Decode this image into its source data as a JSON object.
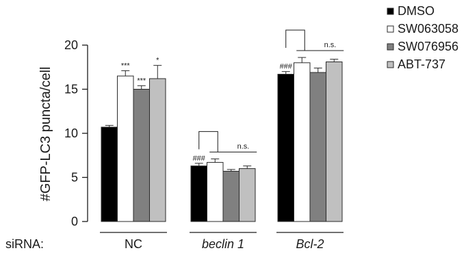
{
  "chart_data": {
    "type": "bar",
    "ylabel": "#GFP-LC3 puncta/cell",
    "ylim": [
      0,
      20
    ],
    "yticks": [
      0,
      5,
      10,
      15,
      20
    ],
    "row_label": "siRNA:",
    "categories": [
      "NC",
      "beclin 1",
      "Bcl-2"
    ],
    "categories_italic": [
      false,
      true,
      true
    ],
    "series": [
      {
        "name": "DMSO",
        "color": "#000000",
        "values": [
          10.7,
          6.3,
          16.7
        ],
        "errors": [
          0.2,
          0.3,
          0.3
        ]
      },
      {
        "name": "SW063058",
        "color": "#ffffff",
        "values": [
          16.5,
          6.7,
          18.0
        ],
        "errors": [
          0.6,
          0.4,
          0.6
        ]
      },
      {
        "name": "SW076956",
        "color": "#808080",
        "values": [
          15.0,
          5.7,
          16.9
        ],
        "errors": [
          0.4,
          0.2,
          0.5
        ]
      },
      {
        "name": "ABT-737",
        "color": "#c0c0c0",
        "values": [
          16.2,
          6.0,
          18.1
        ],
        "errors": [
          1.5,
          0.3,
          0.3
        ]
      }
    ],
    "significance": [
      {
        "group": 0,
        "series": 1,
        "text": "***"
      },
      {
        "group": 0,
        "series": 2,
        "text": "***"
      },
      {
        "group": 0,
        "series": 3,
        "text": "*"
      },
      {
        "group": 1,
        "series": 0,
        "text": "###"
      },
      {
        "group": 2,
        "series": 0,
        "text": "###"
      }
    ],
    "comparison_brackets": [
      {
        "group": 1,
        "text": "n.s."
      },
      {
        "group": 2,
        "text": "n.s."
      }
    ],
    "legend_position": "top-right",
    "grid": false
  }
}
